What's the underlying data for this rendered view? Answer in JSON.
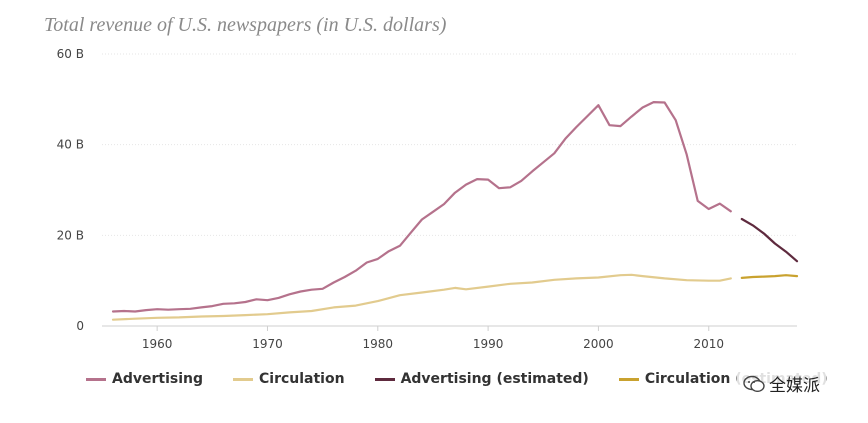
{
  "title": "Total revenue of U.S. newspapers (in U.S. dollars)",
  "watermark": "全媒派",
  "chart_data": {
    "type": "line",
    "title": "Total revenue of U.S. newspapers (in U.S. dollars)",
    "xlim": [
      1955,
      2018
    ],
    "ylim": [
      0,
      60
    ],
    "unit": "B",
    "yticks": [
      {
        "value": 0,
        "label": "0"
      },
      {
        "value": 20,
        "label": "20 B"
      },
      {
        "value": 40,
        "label": "40 B"
      },
      {
        "value": 60,
        "label": "60 B"
      }
    ],
    "xticks": [
      {
        "value": 1960,
        "label": "1960"
      },
      {
        "value": 1970,
        "label": "1970"
      },
      {
        "value": 1980,
        "label": "1980"
      },
      {
        "value": 1990,
        "label": "1990"
      },
      {
        "value": 2000,
        "label": "2000"
      },
      {
        "value": 2010,
        "label": "2010"
      }
    ],
    "grid": true,
    "legend_position": "bottom",
    "series": [
      {
        "name": "Advertising",
        "color": "#b5728c",
        "dashed": false,
        "points": [
          [
            1956,
            3.2
          ],
          [
            1957,
            3.3
          ],
          [
            1958,
            3.2
          ],
          [
            1959,
            3.5
          ],
          [
            1960,
            3.7
          ],
          [
            1961,
            3.6
          ],
          [
            1962,
            3.7
          ],
          [
            1963,
            3.8
          ],
          [
            1964,
            4.1
          ],
          [
            1965,
            4.4
          ],
          [
            1966,
            4.9
          ],
          [
            1967,
            5.0
          ],
          [
            1968,
            5.3
          ],
          [
            1969,
            5.9
          ],
          [
            1970,
            5.7
          ],
          [
            1971,
            6.2
          ],
          [
            1972,
            7.0
          ],
          [
            1973,
            7.6
          ],
          [
            1974,
            8.0
          ],
          [
            1975,
            8.2
          ],
          [
            1976,
            9.6
          ],
          [
            1977,
            10.8
          ],
          [
            1978,
            12.2
          ],
          [
            1979,
            14.0
          ],
          [
            1980,
            14.8
          ],
          [
            1981,
            16.5
          ],
          [
            1982,
            17.7
          ],
          [
            1983,
            20.6
          ],
          [
            1984,
            23.5
          ],
          [
            1985,
            25.2
          ],
          [
            1986,
            26.9
          ],
          [
            1987,
            29.4
          ],
          [
            1988,
            31.2
          ],
          [
            1989,
            32.4
          ],
          [
            1990,
            32.3
          ],
          [
            1991,
            30.4
          ],
          [
            1992,
            30.6
          ],
          [
            1993,
            32.0
          ],
          [
            1994,
            34.1
          ],
          [
            1995,
            36.1
          ],
          [
            1996,
            38.1
          ],
          [
            1997,
            41.3
          ],
          [
            1998,
            43.9
          ],
          [
            1999,
            46.3
          ],
          [
            2000,
            48.7
          ],
          [
            2001,
            44.3
          ],
          [
            2002,
            44.1
          ],
          [
            2003,
            46.2
          ],
          [
            2004,
            48.2
          ],
          [
            2005,
            49.4
          ],
          [
            2006,
            49.3
          ],
          [
            2007,
            45.4
          ],
          [
            2008,
            37.8
          ],
          [
            2009,
            27.6
          ],
          [
            2010,
            25.8
          ],
          [
            2011,
            27.0
          ],
          [
            2012,
            25.3
          ]
        ]
      },
      {
        "name": "Circulation",
        "color": "#e2cb8e",
        "dashed": false,
        "points": [
          [
            1956,
            1.4
          ],
          [
            1958,
            1.6
          ],
          [
            1960,
            1.8
          ],
          [
            1962,
            1.9
          ],
          [
            1964,
            2.1
          ],
          [
            1966,
            2.2
          ],
          [
            1968,
            2.4
          ],
          [
            1970,
            2.6
          ],
          [
            1972,
            3.0
          ],
          [
            1974,
            3.3
          ],
          [
            1976,
            4.1
          ],
          [
            1978,
            4.5
          ],
          [
            1980,
            5.5
          ],
          [
            1982,
            6.8
          ],
          [
            1984,
            7.4
          ],
          [
            1986,
            8.0
          ],
          [
            1987,
            8.4
          ],
          [
            1988,
            8.1
          ],
          [
            1990,
            8.7
          ],
          [
            1992,
            9.3
          ],
          [
            1994,
            9.6
          ],
          [
            1996,
            10.2
          ],
          [
            1998,
            10.5
          ],
          [
            2000,
            10.7
          ],
          [
            2002,
            11.2
          ],
          [
            2003,
            11.3
          ],
          [
            2004,
            11.0
          ],
          [
            2006,
            10.5
          ],
          [
            2008,
            10.1
          ],
          [
            2010,
            10.0
          ],
          [
            2011,
            10.0
          ],
          [
            2012,
            10.5
          ]
        ]
      },
      {
        "name": "Advertising (estimated)",
        "color": "#5e2a3e",
        "dashed": true,
        "points": [
          [
            2013,
            23.6
          ],
          [
            2014,
            22.2
          ],
          [
            2015,
            20.4
          ],
          [
            2016,
            18.2
          ],
          [
            2017,
            16.4
          ],
          [
            2018,
            14.3
          ]
        ]
      },
      {
        "name": "Circulation (estimated)",
        "color": "#c9a22f",
        "dashed": true,
        "points": [
          [
            2013,
            10.6
          ],
          [
            2014,
            10.8
          ],
          [
            2015,
            10.9
          ],
          [
            2016,
            11.0
          ],
          [
            2017,
            11.2
          ],
          [
            2018,
            11.0
          ]
        ]
      }
    ]
  }
}
